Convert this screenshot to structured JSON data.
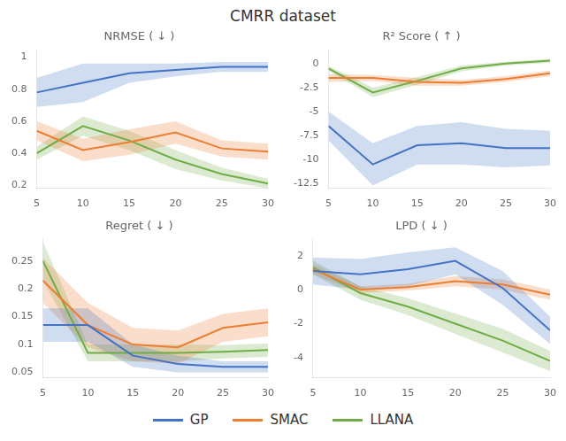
{
  "title": "CMRR dataset",
  "legend": "bottom",
  "chart_data": [
    {
      "type": "line",
      "title": "NRMSE ( ↓ )",
      "x": [
        5,
        10,
        15,
        20,
        25,
        30
      ],
      "xlim": [
        5,
        30
      ],
      "xticks": [
        5,
        10,
        15,
        20,
        25,
        30
      ],
      "ylim": [
        0.18,
        1.05
      ],
      "yticks": [
        0.2,
        0.4,
        0.6,
        0.8,
        1.0
      ],
      "grid": false,
      "series": [
        {
          "name": "GP",
          "color": "#4472C4",
          "values": [
            0.78,
            0.84,
            0.9,
            0.92,
            0.94,
            0.94
          ],
          "std": [
            0.09,
            0.12,
            0.06,
            0.04,
            0.03,
            0.03
          ]
        },
        {
          "name": "SMAC",
          "color": "#ED7D31",
          "values": [
            0.54,
            0.42,
            0.47,
            0.53,
            0.43,
            0.41
          ],
          "std": [
            0.06,
            0.07,
            0.08,
            0.07,
            0.05,
            0.05
          ]
        },
        {
          "name": "LLANA",
          "color": "#70AD47",
          "values": [
            0.4,
            0.57,
            0.48,
            0.36,
            0.27,
            0.21
          ],
          "std": [
            0.04,
            0.06,
            0.06,
            0.06,
            0.04,
            0.03
          ]
        }
      ]
    },
    {
      "type": "line",
      "title": "R² Score ( ↑ )",
      "x": [
        5,
        10,
        15,
        20,
        25,
        30
      ],
      "xlim": [
        5,
        30
      ],
      "xticks": [
        5,
        10,
        15,
        20,
        25,
        30
      ],
      "ylim": [
        -13.0,
        1.5
      ],
      "yticks": [
        -12.5,
        -10,
        -7.5,
        -5,
        -2.5,
        0
      ],
      "grid": false,
      "series": [
        {
          "name": "GP",
          "color": "#4472C4",
          "values": [
            -6.5,
            -10.5,
            -8.5,
            -8.3,
            -8.8,
            -8.8
          ],
          "std": [
            1.5,
            2.2,
            2.0,
            2.2,
            2.0,
            1.8
          ]
        },
        {
          "name": "SMAC",
          "color": "#ED7D31",
          "values": [
            -1.5,
            -1.5,
            -1.9,
            -2.0,
            -1.6,
            -1.0
          ],
          "std": [
            0.4,
            0.3,
            0.4,
            0.3,
            0.3,
            0.3
          ]
        },
        {
          "name": "LLANA",
          "color": "#70AD47",
          "values": [
            -0.5,
            -3.0,
            -1.8,
            -0.5,
            0.0,
            0.3
          ],
          "std": [
            0.25,
            0.5,
            0.4,
            0.3,
            0.2,
            0.2
          ]
        }
      ]
    },
    {
      "type": "line",
      "title": "Regret ( ↓ )",
      "x": [
        5,
        10,
        15,
        20,
        25,
        30
      ],
      "xlim": [
        5,
        30
      ],
      "xticks": [
        5,
        10,
        15,
        20,
        25,
        30
      ],
      "ylim": [
        0.04,
        0.29
      ],
      "yticks": [
        0.05,
        0.1,
        0.15,
        0.2,
        0.25
      ],
      "grid": false,
      "series": [
        {
          "name": "GP",
          "color": "#4472C4",
          "values": [
            0.135,
            0.135,
            0.08,
            0.065,
            0.06,
            0.06
          ],
          "std": [
            0.03,
            0.03,
            0.02,
            0.015,
            0.01,
            0.01
          ]
        },
        {
          "name": "SMAC",
          "color": "#ED7D31",
          "values": [
            0.215,
            0.135,
            0.1,
            0.095,
            0.13,
            0.14
          ],
          "std": [
            0.04,
            0.04,
            0.03,
            0.03,
            0.025,
            0.025
          ]
        },
        {
          "name": "LLANA",
          "color": "#70AD47",
          "values": [
            0.25,
            0.085,
            0.085,
            0.085,
            0.087,
            0.09
          ],
          "std": [
            0.035,
            0.015,
            0.015,
            0.015,
            0.012,
            0.012
          ]
        }
      ]
    },
    {
      "type": "line",
      "title": "LPD ( ↓ )",
      "x": [
        5,
        10,
        15,
        20,
        25,
        30
      ],
      "xlim": [
        5,
        30
      ],
      "xticks": [
        5,
        10,
        15,
        20,
        25,
        30
      ],
      "ylim": [
        -5.2,
        3.0
      ],
      "yticks": [
        -4,
        -2,
        0,
        2
      ],
      "grid": false,
      "series": [
        {
          "name": "GP",
          "color": "#4472C4",
          "values": [
            1.1,
            0.9,
            1.2,
            1.7,
            0.1,
            -2.4
          ],
          "std": [
            0.8,
            0.9,
            1.0,
            0.8,
            1.0,
            0.8
          ]
        },
        {
          "name": "SMAC",
          "color": "#ED7D31",
          "values": [
            1.2,
            0.0,
            0.15,
            0.5,
            0.3,
            -0.3
          ],
          "std": [
            0.3,
            0.2,
            0.2,
            0.3,
            0.3,
            0.3
          ]
        },
        {
          "name": "LLANA",
          "color": "#70AD47",
          "values": [
            1.3,
            -0.2,
            -1.0,
            -2.0,
            -3.0,
            -4.2
          ],
          "std": [
            0.4,
            0.4,
            0.5,
            0.6,
            0.7,
            0.6
          ]
        }
      ]
    }
  ]
}
